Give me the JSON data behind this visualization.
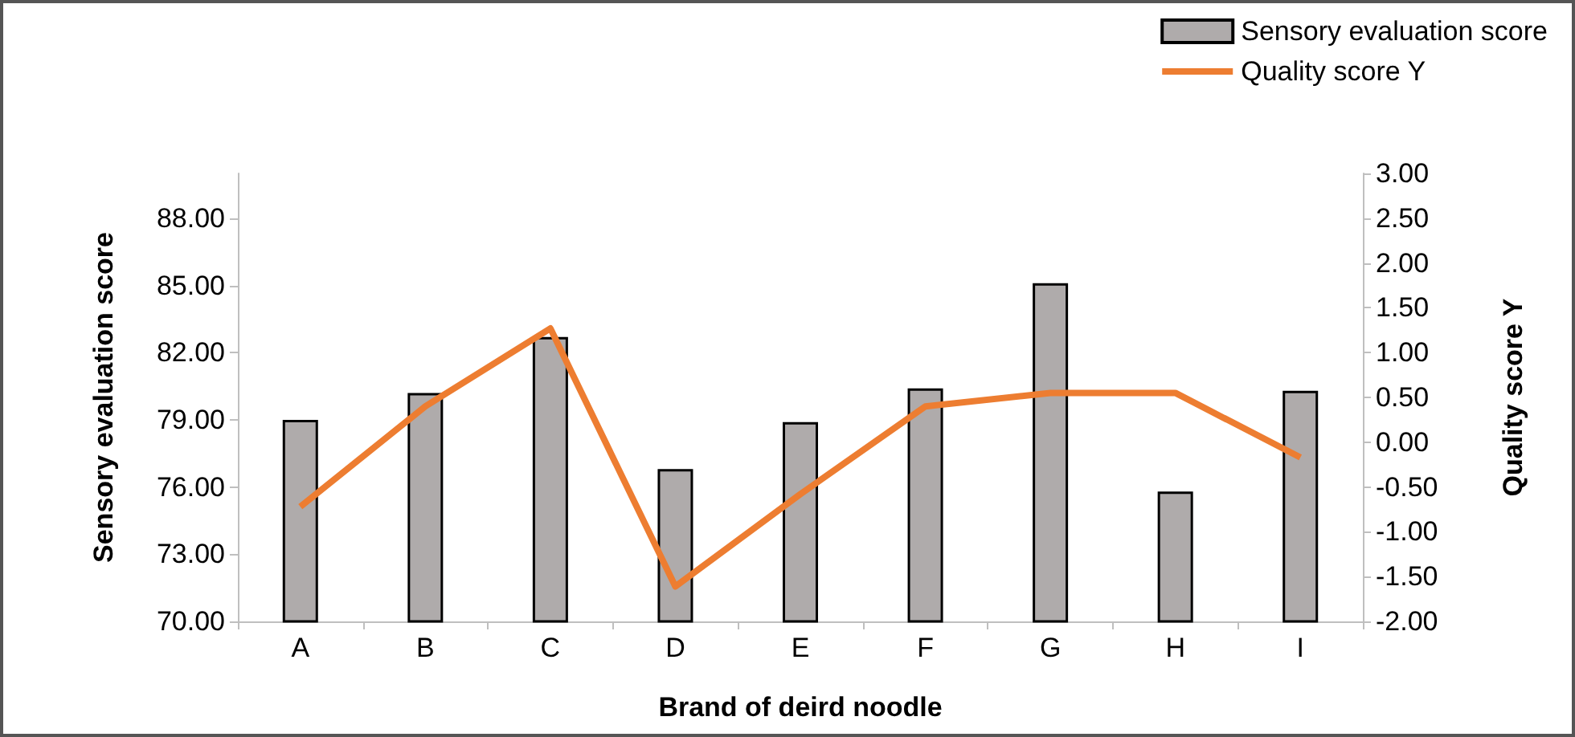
{
  "chart_data": {
    "type": "bar",
    "xlabel": "Brand of deird noodle",
    "ylabel": "Sensory evaluation score",
    "y2label": "Quality score Y",
    "categories": [
      "A",
      "B",
      "C",
      "D",
      "E",
      "F",
      "G",
      "H",
      "I"
    ],
    "series": [
      {
        "name": "Sensory evaluation score",
        "color": "#afabab",
        "values": [
          79.0,
          80.2,
          82.7,
          76.8,
          78.9,
          80.4,
          85.1,
          75.8,
          80.3
        ]
      },
      {
        "name": "Quality score Y",
        "type": "line",
        "axis": "y2",
        "color": "#ed7d31",
        "marker": "none",
        "values": [
          -0.72,
          0.4,
          1.27,
          -1.61,
          -0.58,
          0.4,
          0.55,
          0.55,
          -0.17
        ]
      }
    ],
    "ylim": [
      70,
      90
    ],
    "yticks": [
      {
        "value": 70,
        "label": "70.00"
      },
      {
        "value": 73,
        "label": "73.00"
      },
      {
        "value": 76,
        "label": "76.00"
      },
      {
        "value": 79,
        "label": "79.00"
      },
      {
        "value": 82,
        "label": "82.00"
      },
      {
        "value": 85,
        "label": "85.00"
      },
      {
        "value": 88,
        "label": "88.00"
      }
    ],
    "y2lim": [
      -2,
      3
    ],
    "y2ticks": [
      {
        "value": -2,
        "label": "-2.00"
      },
      {
        "value": -1.5,
        "label": "-1.50"
      },
      {
        "value": -1,
        "label": "-1.00"
      },
      {
        "value": -0.5,
        "label": "-0.50"
      },
      {
        "value": 0,
        "label": "0.00"
      },
      {
        "value": 0.5,
        "label": "0.50"
      },
      {
        "value": 1,
        "label": "1.00"
      },
      {
        "value": 1.5,
        "label": "1.50"
      },
      {
        "value": 2,
        "label": "2.00"
      },
      {
        "value": 2.5,
        "label": "2.50"
      },
      {
        "value": 3,
        "label": "3.00"
      }
    ],
    "grid": false,
    "legend": "top right"
  }
}
